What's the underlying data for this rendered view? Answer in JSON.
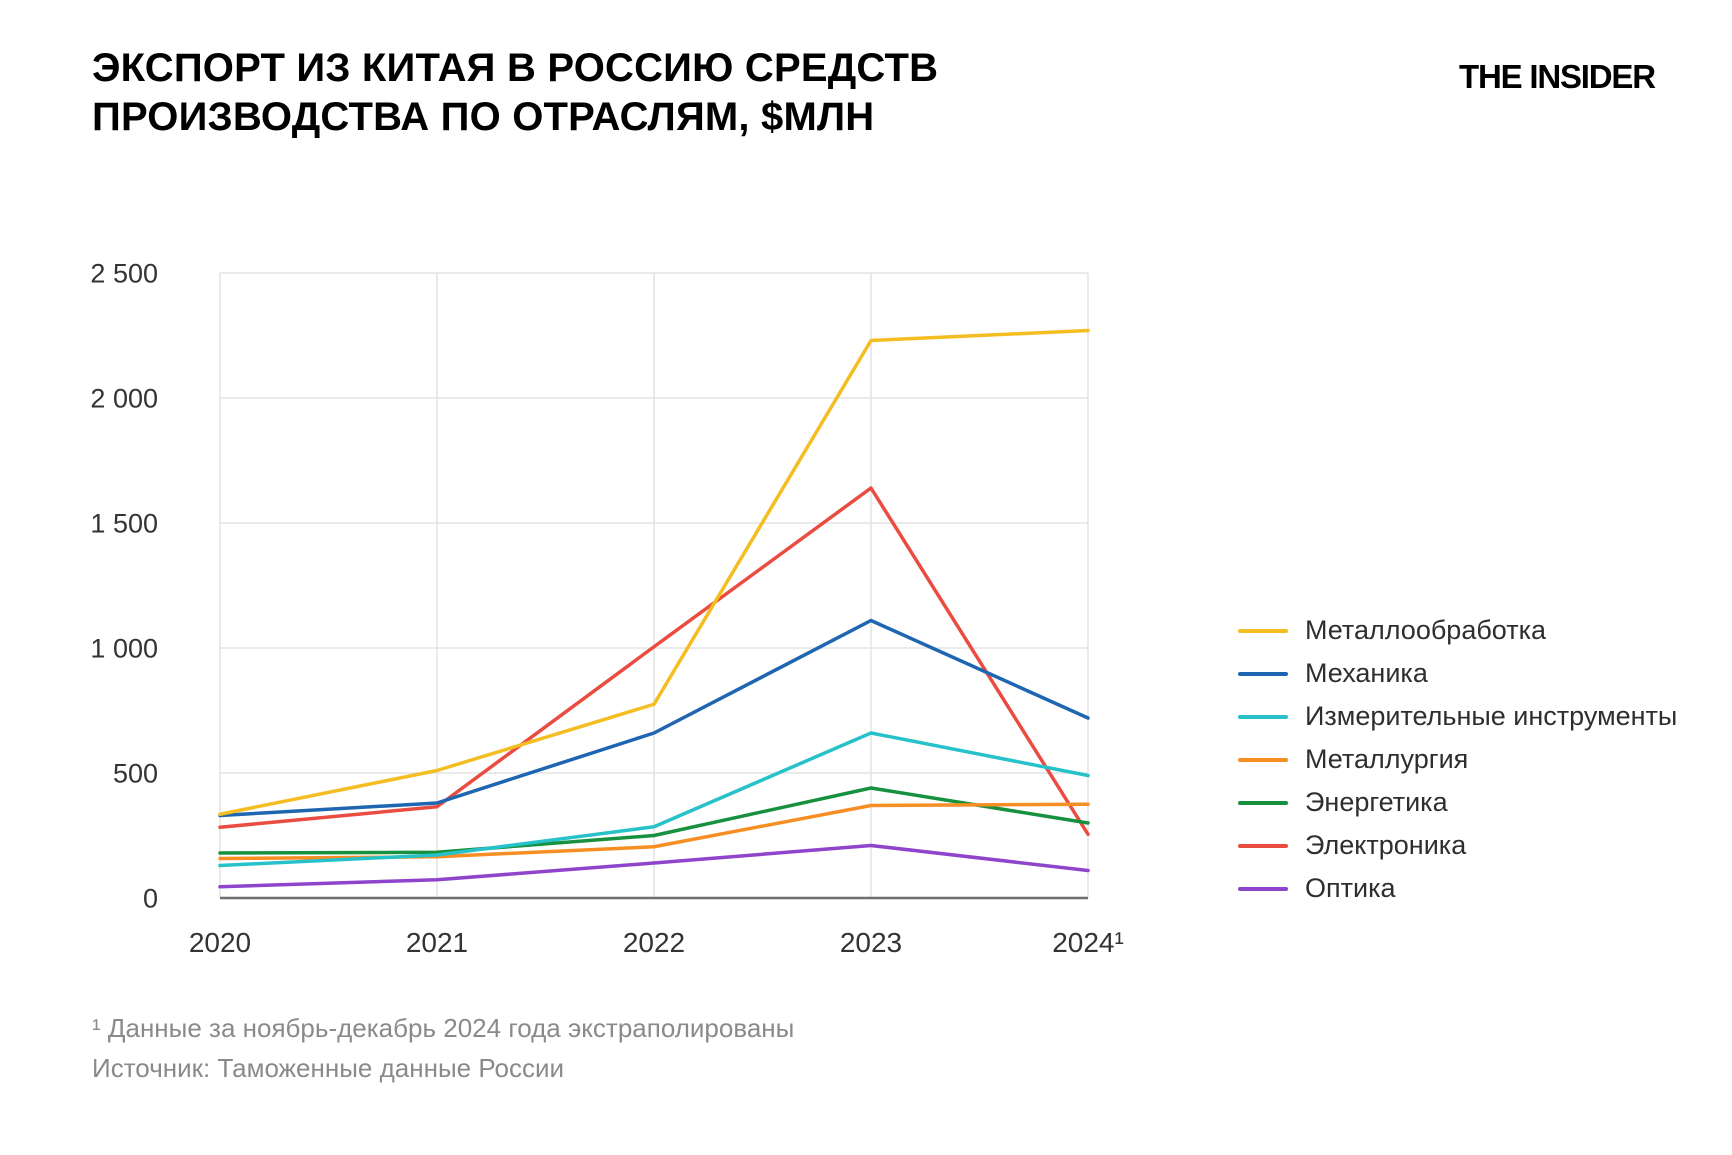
{
  "header": {
    "title": "ЭКСПОРТ ИЗ КИТАЯ В РОССИЮ СРЕДСТВ ПРОИЗВОДСТВА ПО ОТРАСЛЯМ, $МЛН",
    "logo": "THE INSIDER"
  },
  "chart_data": {
    "type": "line",
    "x": [
      "2020",
      "2021",
      "2022",
      "2023",
      "2024¹"
    ],
    "series": [
      {
        "name": "Металлообработка",
        "color": "#F4BD22",
        "values": [
          335,
          510,
          775,
          2230,
          2270
        ]
      },
      {
        "name": "Механика",
        "color": "#1E66B1",
        "values": [
          330,
          380,
          660,
          1110,
          720
        ]
      },
      {
        "name": "Измерительные инструменты",
        "color": "#27C2C9",
        "values": [
          130,
          172,
          285,
          660,
          490
        ]
      },
      {
        "name": "Металлургия",
        "color": "#F78E24",
        "values": [
          158,
          165,
          205,
          370,
          375
        ]
      },
      {
        "name": "Энергетика",
        "color": "#17913F",
        "values": [
          180,
          183,
          250,
          440,
          300
        ]
      },
      {
        "name": "Электроника",
        "color": "#EA4C41",
        "values": [
          283,
          365,
          1005,
          1640,
          255
        ]
      },
      {
        "name": "Оптика",
        "color": "#8E44CB",
        "values": [
          45,
          73,
          140,
          210,
          110
        ]
      }
    ],
    "ylim": [
      0,
      2500
    ],
    "yticks": [
      0,
      500,
      1000,
      1500,
      2000,
      2500
    ],
    "ytick_labels": [
      "0",
      "500",
      "1 000",
      "1 500",
      "2 000",
      "2 500"
    ],
    "grid": true,
    "legend_position": "right",
    "colors": {
      "grid": "#E3E3E3",
      "axis_line": "#6E6E6E",
      "tick_text": "#333333"
    }
  },
  "footnotes": {
    "note": "¹ Данные за ноябрь-декабрь 2024 года экстраполированы",
    "source": "Источник: Таможенные данные России"
  }
}
